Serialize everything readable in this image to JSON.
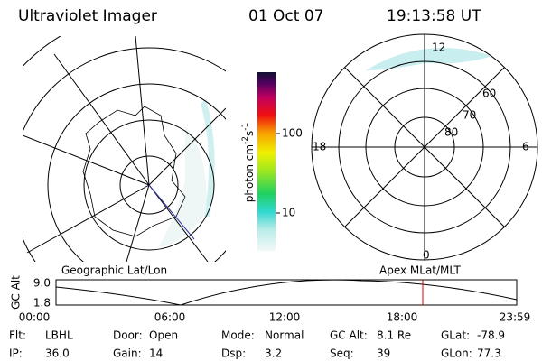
{
  "header": {
    "title": "Ultraviolet Imager",
    "date": "01 Oct 07",
    "time": "19:13:58 UT"
  },
  "colorbar": {
    "label": {
      "base": "photon cm",
      "exp1": "-2",
      "mid": "s",
      "exp2": "-1"
    },
    "ticks": [
      "100",
      "10"
    ]
  },
  "polar": {
    "mlt_labels": {
      "top": "12",
      "left": "18",
      "right": "6",
      "bottom": "0"
    },
    "lat_labels": [
      "80",
      "70",
      "60"
    ]
  },
  "orbit": {
    "left_title": "Geographic Lat/Lon",
    "right_title": "Apex MLat/MLT",
    "y_label": "GC Alt",
    "y_ticks": [
      "9.0",
      "1.8"
    ],
    "x_ticks": [
      "00:00",
      "06:00",
      "12:00",
      "18:00",
      "23:59"
    ]
  },
  "status": {
    "rows": [
      [
        {
          "label": "Flt:",
          "value": "LBHL"
        },
        {
          "label": "Door:",
          "value": "Open"
        },
        {
          "label": "Mode:",
          "value": "Normal"
        },
        {
          "label": "GC Alt:",
          "value": "8.1 Re"
        },
        {
          "label": "GLat:",
          "value": "-78.9"
        }
      ],
      [
        {
          "label": "IP:",
          "value": "36.0"
        },
        {
          "label": "Gain:",
          "value": "14"
        },
        {
          "label": "Dsp:",
          "value": "3.2"
        },
        {
          "label": "Seq:",
          "value": "39"
        },
        {
          "label": "GLon:",
          "value": "77.3"
        }
      ]
    ]
  }
}
